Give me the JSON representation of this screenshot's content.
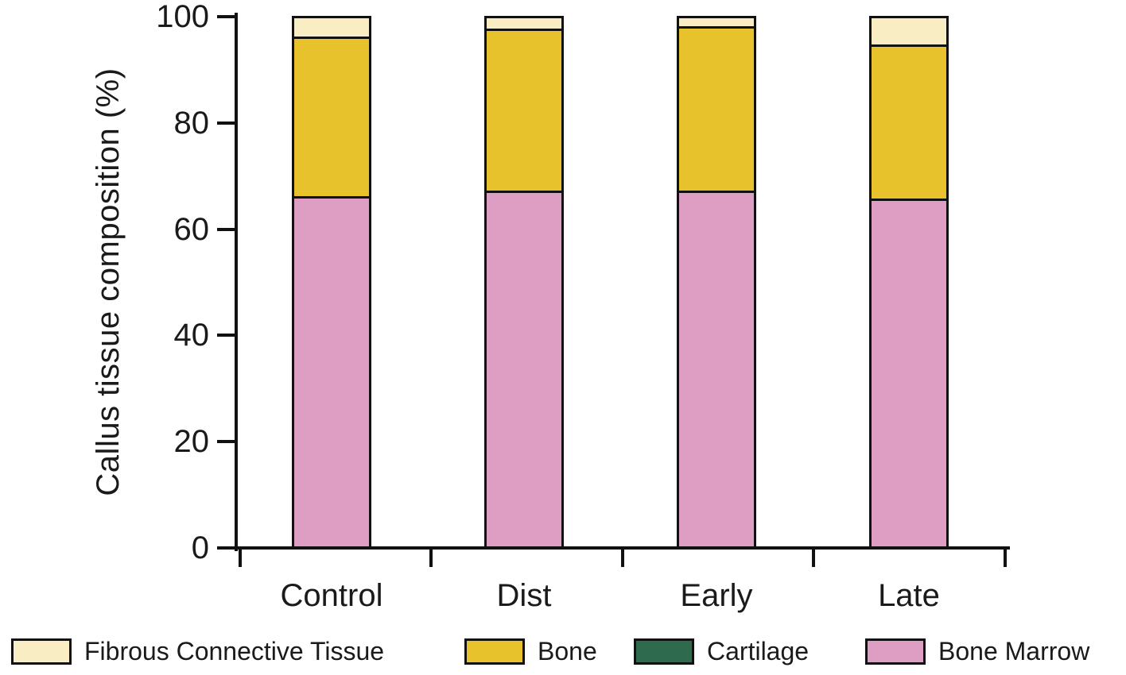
{
  "figure": {
    "background": "#ffffff",
    "text_color": "#1a1a1a",
    "axis_color": "#111111"
  },
  "chart_data": {
    "type": "bar",
    "stacked": true,
    "title": "",
    "xlabel": "",
    "ylabel": "Callus tissue composition (%)",
    "ylim": [
      0,
      100
    ],
    "yticks": [
      0,
      20,
      40,
      60,
      80,
      100
    ],
    "grid": false,
    "legend_position": "bottom",
    "bar_border_color": "#111111",
    "categories": [
      "Control",
      "Dist",
      "Early",
      "Late"
    ],
    "series": [
      {
        "name": "Fibrous Connective Tissue",
        "color": "#F9EDC3",
        "values": [
          4,
          2.5,
          2,
          5.5
        ]
      },
      {
        "name": "Bone",
        "color": "#E7C22C",
        "values": [
          30,
          30.5,
          31,
          29
        ]
      },
      {
        "name": "Cartilage",
        "color": "#2E6B4E",
        "values": [
          0,
          0,
          0,
          0
        ]
      },
      {
        "name": "Bone Marrow",
        "color": "#DE9EC4",
        "values": [
          66,
          67,
          67,
          65.5
        ]
      }
    ],
    "stack_order_bottom_to_top": [
      "Bone Marrow",
      "Cartilage",
      "Bone",
      "Fibrous Connective Tissue"
    ]
  }
}
